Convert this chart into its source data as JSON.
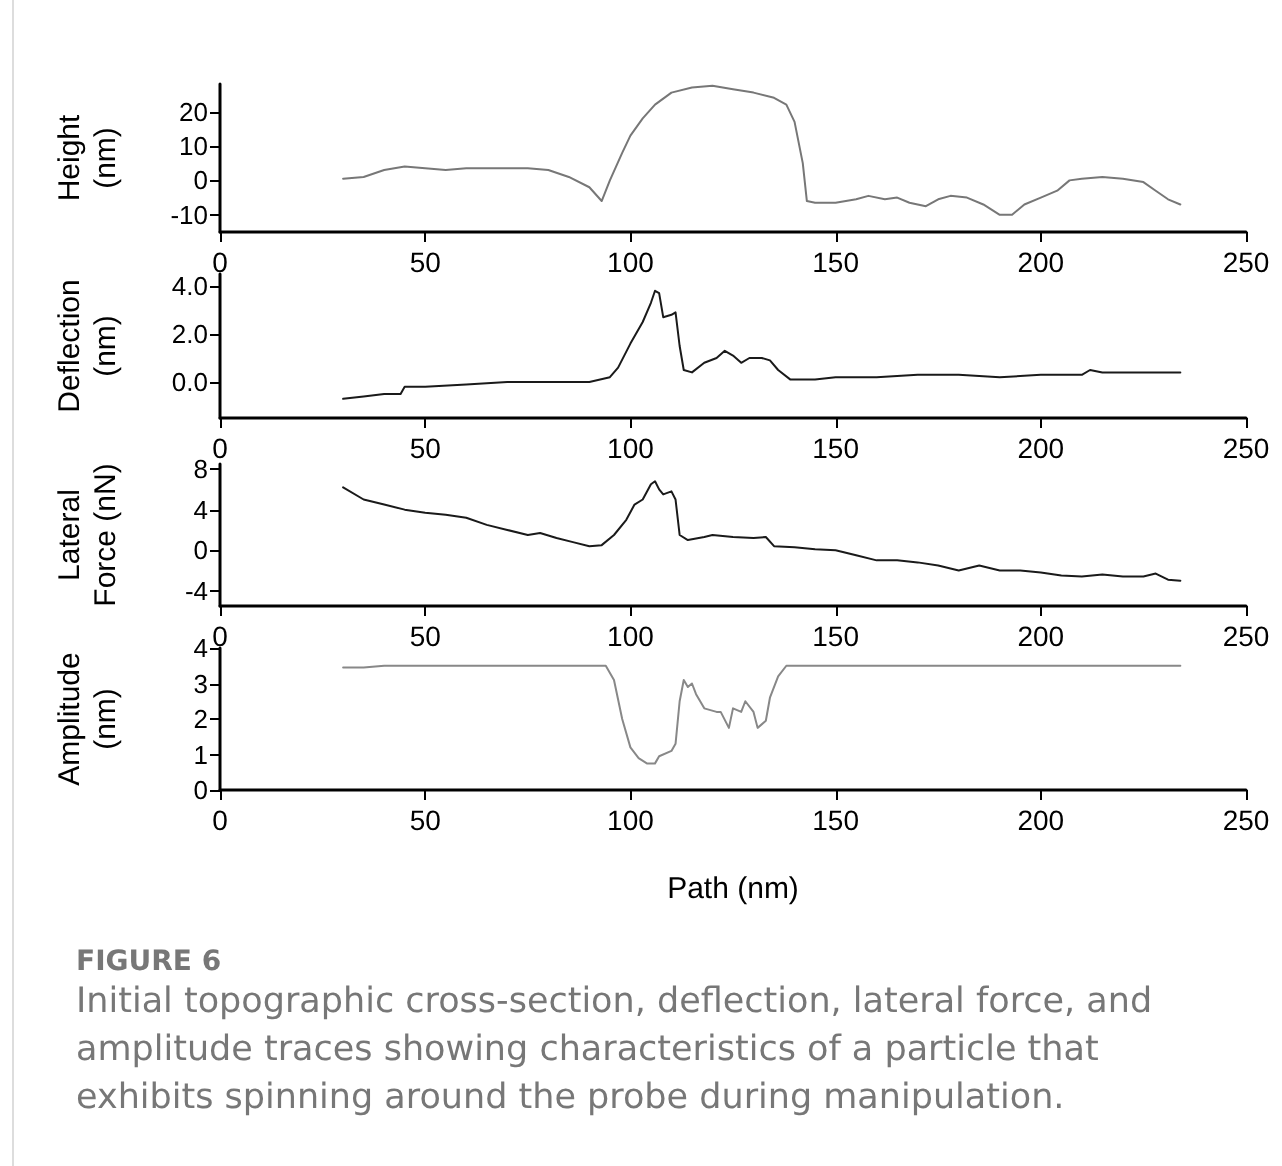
{
  "chart_data": [
    {
      "type": "line",
      "ylabel": "Height (nm)",
      "xlim": [
        0,
        250
      ],
      "xticks": [
        0,
        50,
        100,
        150,
        200,
        250
      ],
      "ylim": [
        -15,
        28
      ],
      "yticks": [
        -10,
        0,
        10,
        20
      ],
      "grid": false,
      "marker": "none",
      "line_style": "solid",
      "x": [
        30,
        35,
        40,
        45,
        50,
        55,
        60,
        65,
        70,
        75,
        80,
        85,
        90,
        93,
        95,
        98,
        100,
        103,
        106,
        110,
        115,
        120,
        125,
        130,
        135,
        138,
        140,
        142,
        143,
        145,
        150,
        155,
        158,
        162,
        165,
        168,
        172,
        175,
        178,
        182,
        186,
        190,
        193,
        196,
        200,
        204,
        207,
        210,
        215,
        220,
        225,
        228,
        231,
        234
      ],
      "series": [
        {
          "color": "#777777",
          "values": [
            0.5,
            1,
            3,
            4,
            3.5,
            3,
            3.5,
            3.5,
            3.5,
            3.5,
            3,
            1,
            -2,
            -6,
            0,
            8,
            13,
            18,
            22,
            25.5,
            27,
            27.5,
            26.5,
            25.5,
            24,
            22,
            17,
            5,
            -6,
            -6.5,
            -6.5,
            -5.5,
            -4.5,
            -5.5,
            -5,
            -6.5,
            -7.5,
            -5.5,
            -4.5,
            -5,
            -7,
            -10,
            -10,
            -7,
            -5,
            -3,
            0,
            0.5,
            1,
            0.5,
            -0.5,
            -3,
            -5.5,
            -7
          ]
        }
      ]
    },
    {
      "type": "line",
      "ylabel": "Deflection (nm)",
      "xlim": [
        0,
        250
      ],
      "xticks": [
        0,
        50,
        100,
        150,
        200,
        250
      ],
      "ylim": [
        -1.5,
        4.5
      ],
      "yticks": [
        {
          "value": 0,
          "label": "0.0"
        },
        {
          "value": 2,
          "label": "2.0"
        },
        {
          "value": 4,
          "label": "4.0"
        }
      ],
      "grid": false,
      "marker": "none",
      "line_style": "solid",
      "x": [
        30,
        35,
        40,
        44,
        45,
        50,
        60,
        70,
        80,
        90,
        95,
        97,
        100,
        103,
        105,
        106,
        107,
        108,
        110,
        111,
        112,
        113,
        115,
        118,
        121,
        123,
        125,
        127,
        129,
        132,
        134,
        136,
        139,
        145,
        150,
        160,
        170,
        180,
        190,
        200,
        210,
        212,
        215,
        225,
        234
      ],
      "series": [
        {
          "color": "#1a1a1a",
          "values": [
            -0.7,
            -0.6,
            -0.5,
            -0.5,
            -0.2,
            -0.2,
            -0.1,
            0.0,
            0.0,
            0.0,
            0.2,
            0.6,
            1.6,
            2.5,
            3.3,
            3.8,
            3.7,
            2.7,
            2.8,
            2.9,
            1.5,
            0.5,
            0.4,
            0.8,
            1.0,
            1.3,
            1.1,
            0.8,
            1.0,
            1.0,
            0.9,
            0.5,
            0.1,
            0.1,
            0.2,
            0.2,
            0.3,
            0.3,
            0.2,
            0.3,
            0.3,
            0.5,
            0.4,
            0.4,
            0.4
          ]
        }
      ]
    },
    {
      "type": "line",
      "ylabel": "Lateral Force (nN)",
      "xlim": [
        0,
        250
      ],
      "xticks": [
        0,
        50,
        100,
        150,
        200,
        250
      ],
      "ylim": [
        -5.5,
        8.5
      ],
      "yticks": [
        -4,
        0,
        4,
        8
      ],
      "grid": false,
      "marker": "none",
      "line_style": "solid",
      "x": [
        30,
        35,
        40,
        45,
        50,
        55,
        60,
        65,
        70,
        75,
        78,
        82,
        86,
        90,
        93,
        96,
        99,
        101,
        103,
        105,
        106,
        107,
        108,
        110,
        111,
        112,
        114,
        118,
        120,
        125,
        130,
        133,
        135,
        140,
        145,
        150,
        155,
        160,
        165,
        170,
        175,
        180,
        185,
        190,
        195,
        200,
        205,
        210,
        215,
        220,
        225,
        228,
        231,
        234
      ],
      "series": [
        {
          "color": "#1a1a1a",
          "values": [
            6.2,
            5,
            4.5,
            4,
            3.7,
            3.5,
            3.2,
            2.5,
            2,
            1.5,
            1.7,
            1.2,
            0.8,
            0.4,
            0.5,
            1.5,
            3,
            4.5,
            5,
            6.5,
            6.8,
            6,
            5.5,
            5.8,
            5,
            1.5,
            1,
            1.3,
            1.5,
            1.3,
            1.2,
            1.3,
            0.4,
            0.3,
            0.1,
            0,
            -0.5,
            -1,
            -1,
            -1.2,
            -1.5,
            -2,
            -1.5,
            -2,
            -2,
            -2.2,
            -2.5,
            -2.6,
            -2.4,
            -2.6,
            -2.6,
            -2.3,
            -2.9,
            -3
          ]
        }
      ]
    },
    {
      "type": "line",
      "ylabel": "Amplitude (nm)",
      "xlabel": "Path (nm)",
      "xlim": [
        0,
        250
      ],
      "xticks": [
        0,
        50,
        100,
        150,
        200,
        250
      ],
      "ylim": [
        0,
        4
      ],
      "yticks": [
        0,
        1,
        2,
        3,
        4
      ],
      "grid": false,
      "marker": "none",
      "line_style": "solid",
      "annotations": [
        "FIGURE 6",
        "Initial topographic cross-section, deflection, lateral force, and amplitude traces showing characteristics of a particle that exhibits spinning around the probe during manipulation."
      ],
      "x": [
        30,
        35,
        40,
        50,
        60,
        70,
        80,
        90,
        94,
        96,
        98,
        100,
        102,
        104,
        106,
        107,
        110,
        111,
        112,
        113,
        114,
        115,
        116,
        118,
        121,
        122,
        124,
        125,
        127,
        128,
        130,
        131,
        133,
        134,
        136,
        138,
        145,
        160,
        180,
        200,
        220,
        234
      ],
      "series": [
        {
          "color": "#888888",
          "values": [
            3.45,
            3.45,
            3.5,
            3.5,
            3.5,
            3.5,
            3.5,
            3.5,
            3.5,
            3.1,
            2.0,
            1.2,
            0.9,
            0.75,
            0.75,
            0.95,
            1.1,
            1.3,
            2.5,
            3.1,
            2.9,
            3.0,
            2.7,
            2.3,
            2.2,
            2.2,
            1.75,
            2.3,
            2.2,
            2.5,
            2.2,
            1.75,
            1.95,
            2.6,
            3.2,
            3.5,
            3.5,
            3.5,
            3.5,
            3.5,
            3.5,
            3.5
          ]
        }
      ]
    }
  ]
}
